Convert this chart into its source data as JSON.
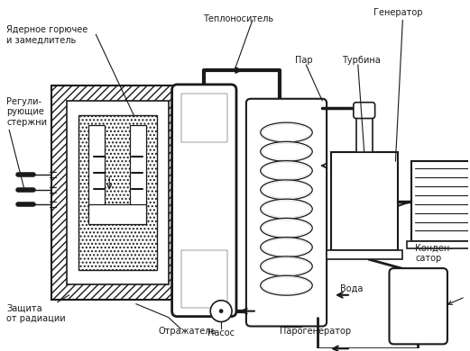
{
  "bg_color": "#ffffff",
  "line_color": "#1a1a1a",
  "figsize": [
    5.21,
    3.9
  ],
  "dpi": 100,
  "labels": {
    "yadernoe": "Ядерное горючее\nи замедлитель",
    "reguli": "Регули-\nрующие\nстержни",
    "zashita": "Защита\nот радиации",
    "otrazhatel": "Отражатель",
    "nasos": "Насос",
    "teplonositel": "Теплоноситель",
    "par": "Пар",
    "turbina": "Турбина",
    "generator": "Генератор",
    "voda": "Вода",
    "parogenerator": "Парогенератор",
    "kondensator": "Конден-\nсатор"
  }
}
